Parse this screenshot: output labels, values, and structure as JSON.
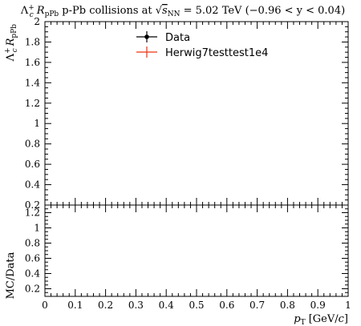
{
  "chart_data": [
    {
      "type": "line",
      "panel": "main",
      "title": "Λc⁺ RpPb p-Pb collisions at √sNN = 5.02 TeV (−0.96 < y < 0.04)",
      "title_parts": {
        "lead": "Λ",
        "lead_sub": "c",
        "lead_sup": "+",
        "r": "R",
        "r_sub": "pPb",
        "mid": " p-Pb collisions at ",
        "sqrt_s": "s",
        "sqrt_sub": "NN",
        "tail": " = 5.02 TeV (−0.96 < y < 0.04)"
      },
      "ylabel_parts": {
        "lead": "Λ",
        "lead_sub": "c",
        "lead_sup": "+",
        "r": "R",
        "r_sub": "pPb"
      },
      "xlim": [
        0,
        1
      ],
      "ylim": [
        0.2,
        2
      ],
      "y_ticks": [
        "0.2",
        "0.4",
        "0.6",
        "0.8",
        "1",
        "1.2",
        "1.4",
        "1.6",
        "1.8",
        "2"
      ],
      "y_tick_values": [
        0.2,
        0.4,
        0.6,
        0.8,
        1.0,
        1.2,
        1.4,
        1.6,
        1.8,
        2.0
      ],
      "series": [
        {
          "name": "Data",
          "values": [],
          "color": "#000000"
        },
        {
          "name": "Herwig7testtest1e4",
          "values": [],
          "color": "#ee3311"
        }
      ],
      "legend_placement": "top-center",
      "grid": false
    },
    {
      "type": "line",
      "panel": "ratio",
      "ylabel": "MC/Data",
      "xlabel_parts": {
        "p": "p",
        "p_sub": "T",
        "unit": " [GeV/",
        "c": "c",
        "close": "]"
      },
      "xlim": [
        0,
        1
      ],
      "ylim": [
        0.1,
        1.3
      ],
      "x_ticks": [
        "0",
        "0.1",
        "0.2",
        "0.3",
        "0.4",
        "0.5",
        "0.6",
        "0.7",
        "0.8",
        "0.9",
        "1"
      ],
      "x_tick_values": [
        0,
        0.1,
        0.2,
        0.3,
        0.4,
        0.5,
        0.6,
        0.7,
        0.8,
        0.9,
        1.0
      ],
      "y_ticks": [
        "0.2",
        "0.4",
        "0.6",
        "0.8",
        "1",
        "1.2"
      ],
      "y_tick_values": [
        0.2,
        0.4,
        0.6,
        0.8,
        1.0,
        1.2
      ],
      "series": [],
      "grid": false
    }
  ]
}
